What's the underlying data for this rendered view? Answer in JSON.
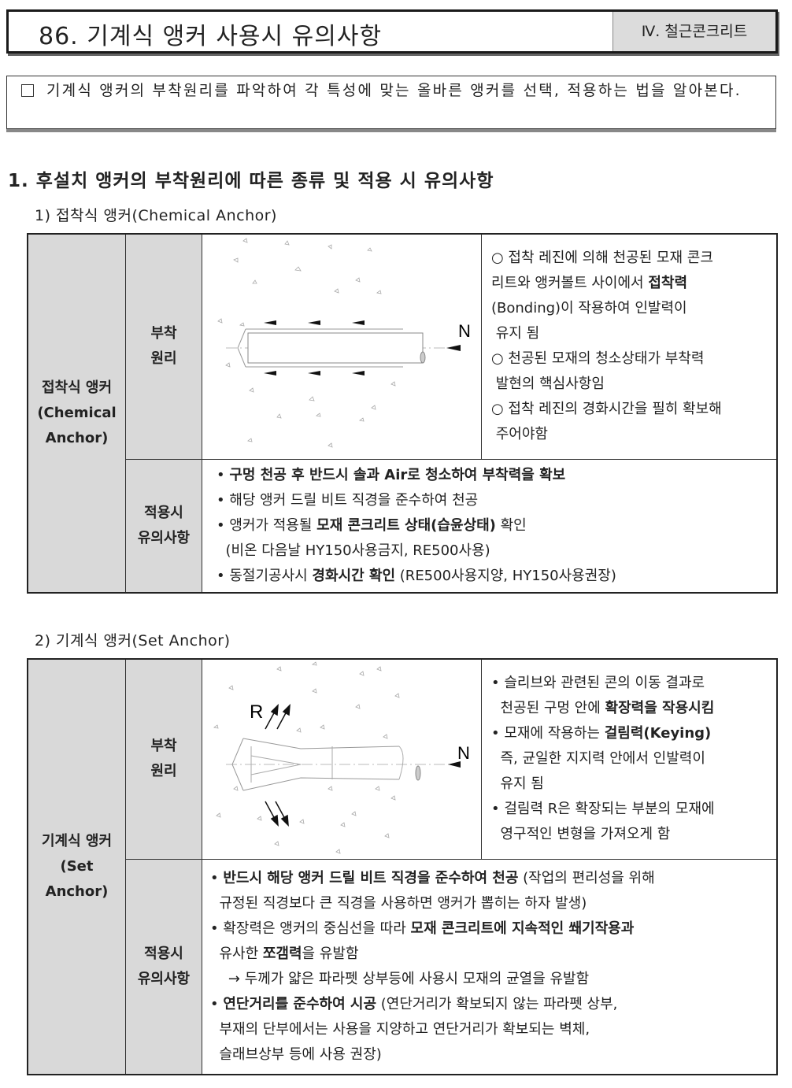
{
  "header": {
    "title": "86. 기계식 앵커 사용시 유의사항",
    "category": "Ⅳ. 철근콘크리트"
  },
  "intro": {
    "checkbox_icon": "empty-square",
    "text": "기계식 앵커의 부착원리를 파악하여 각 특성에 맞는 올바른 앵커를 선택, 적용하는 법을 알아본다."
  },
  "section_heading": "1. 후설치 앵커의 부착원리에 따른 종류 및 적용 시 유의사항",
  "tables": [
    {
      "subheading": "1) 접착식 앵커(Chemical Anchor)",
      "type_label": [
        "접착식 앵커",
        "(Chemical",
        "Anchor)"
      ],
      "row1_label": [
        "부착",
        "원리"
      ],
      "row2_label": [
        "적용시",
        "유의사항"
      ],
      "diagram_label_n": "N",
      "principle": [
        [
          [
            {
              "t": "○ 접착 레진에 의해 천공된 모재 콘크"
            }
          ],
          [
            {
              "t": "리트와 앵커볼트 사이에서 "
            },
            {
              "t": "접착력",
              "b": true
            }
          ],
          [
            {
              "t": "(Bonding)이 작용하여 인발력이"
            }
          ],
          [
            {
              "t": " 유지 됨"
            }
          ]
        ],
        [
          [
            {
              "t": "○ 천공된 모재의 청소상태가 부착력"
            }
          ],
          [
            {
              "t": " 발현의 핵심사항임"
            }
          ]
        ],
        [
          [
            {
              "t": "○ 접착 레진의 경화시간을 필히 확보해"
            }
          ],
          [
            {
              "t": " 주어야함"
            }
          ]
        ]
      ],
      "notes": [
        [
          [
            {
              "t": "• "
            },
            {
              "t": "구멍 천공 후 반드시 솔과 Air로 청소하여 부착력을 확보",
              "b": true
            }
          ]
        ],
        [
          [
            {
              "t": "• 해당 앵커 드릴 비트 직경을 준수하여 천공"
            }
          ]
        ],
        [
          [
            {
              "t": "• 앵커가 적용될 "
            },
            {
              "t": "모재 콘크리트 상태(습윤상태)",
              "b": true
            },
            {
              "t": " 확인"
            }
          ],
          [
            {
              "t": "  (비온 다음날 HY150사용금지, RE500사용)"
            }
          ]
        ],
        [
          [
            {
              "t": "• 동절기공사시 "
            },
            {
              "t": "경화시간 확인",
              "b": true
            },
            {
              "t": " (RE500사용지양, HY150사용권장)"
            }
          ]
        ]
      ]
    },
    {
      "subheading": "2) 기계식 앵커(Set Anchor)",
      "type_label": [
        "기계식 앵커",
        "(Set",
        "Anchor)"
      ],
      "row1_label": [
        "부착",
        "원리"
      ],
      "row2_label": [
        "적용시",
        "유의사항"
      ],
      "diagram_label_n": "N",
      "diagram_label_r": "R",
      "principle": [
        [
          [
            {
              "t": "• 슬리브와 관련된 콘의 이동 결과로"
            }
          ],
          [
            {
              "t": "  천공된 구멍 안에 "
            },
            {
              "t": "확장력을 작용시킴",
              "b": true
            }
          ]
        ],
        [
          [
            {
              "t": "• 모재에 작용하는 "
            },
            {
              "t": "걸림력(Keying)",
              "b": true
            }
          ],
          [
            {
              "t": "  즉, 균일한 지지력 안에서 인발력이"
            }
          ],
          [
            {
              "t": "  유지 됨"
            }
          ]
        ],
        [
          [
            {
              "t": "• 걸림력 R은 확장되는 부분의 모재에"
            }
          ],
          [
            {
              "t": "  영구적인 변형을 가져오게 함"
            }
          ]
        ]
      ],
      "notes": [
        [
          [
            {
              "t": "• "
            },
            {
              "t": "반드시 해당 앵커 드릴 비트 직경을 준수하여 천공",
              "b": true
            },
            {
              "t": " (작업의 편리성을 위해"
            }
          ],
          [
            {
              "t": "  규정된 직경보다 큰 직경을 사용하면 앵커가 뽑히는 하자 발생)"
            }
          ]
        ],
        [
          [
            {
              "t": "• 확장력은 앵커의 중심선을 따라 "
            },
            {
              "t": "모재 콘크리트에 지속적인 쐐기작용과",
              "b": true
            }
          ],
          [
            {
              "t": "  유사한 "
            },
            {
              "t": "쪼갬력",
              "b": true
            },
            {
              "t": "을 유발함"
            }
          ],
          [
            {
              "t": "    → 두께가 얇은 파라펫 상부등에 사용시 모재의 균열을 유발함"
            }
          ]
        ],
        [
          [
            {
              "t": "• "
            },
            {
              "t": "연단거리를 준수하여 시공",
              "b": true
            },
            {
              "t": " (연단거리가 확보되지 않는 파라펫 상부,"
            }
          ],
          [
            {
              "t": "  부재의 단부에서는 사용을 지양하고 연단거리가 확보되는 벽체,"
            }
          ],
          [
            {
              "t": "  슬래브상부 등에 사용 권장)"
            }
          ]
        ]
      ]
    }
  ]
}
